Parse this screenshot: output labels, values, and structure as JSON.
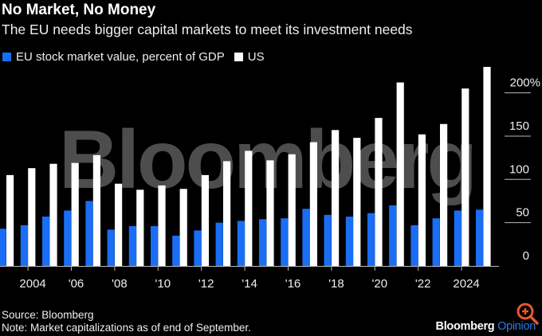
{
  "header": {
    "title": "No Market, No Money",
    "subtitle": "The EU needs bigger capital markets to meet its investment needs"
  },
  "footer": {
    "source": "Source: Bloomberg",
    "note": "Note: Market capitalizations as of end of September.",
    "logo_brand": "Bloomberg",
    "logo_suffix": "Opinion"
  },
  "watermark": "Bloomberg",
  "icons": {
    "overlay": "zoom-in-icon"
  },
  "colors": {
    "eu": "#1a6ef5",
    "us": "#ffffff",
    "background": "#000000",
    "watermark": "#5a5a5a",
    "overlay": "#e8582a"
  },
  "chart_data": {
    "type": "bar",
    "title": "No Market, No Money",
    "xlabel": "",
    "ylabel": "percent of GDP",
    "ylim": [
      0,
      230
    ],
    "yticks": [
      0,
      50,
      100,
      150,
      200
    ],
    "ytick_labels": [
      "0",
      "50",
      "100",
      "150",
      "200%"
    ],
    "xtick_labels": [
      {
        "year": 2004,
        "label": "2004"
      },
      {
        "year": 2006,
        "label": "'06"
      },
      {
        "year": 2008,
        "label": "'08"
      },
      {
        "year": 2010,
        "label": "'10"
      },
      {
        "year": 2012,
        "label": "'12"
      },
      {
        "year": 2014,
        "label": "'14"
      },
      {
        "year": 2016,
        "label": "'16"
      },
      {
        "year": 2018,
        "label": "'18"
      },
      {
        "year": 2020,
        "label": "'20"
      },
      {
        "year": 2022,
        "label": "'22"
      },
      {
        "year": 2024,
        "label": "2024"
      }
    ],
    "legend_position": "top-left",
    "categories": [
      2003,
      2004,
      2005,
      2006,
      2007,
      2008,
      2009,
      2010,
      2011,
      2012,
      2013,
      2014,
      2015,
      2016,
      2017,
      2018,
      2019,
      2020,
      2021,
      2022,
      2023,
      2024,
      2025
    ],
    "series": [
      {
        "name": "EU stock market value, percent of GDP",
        "color": "#1a6ef5",
        "values": [
          43,
          47,
          57,
          64,
          75,
          42,
          46,
          46,
          35,
          41,
          50,
          52,
          54,
          55,
          66,
          59,
          57,
          61,
          70,
          47,
          55,
          64,
          65
        ]
      },
      {
        "name": "US",
        "color": "#ffffff",
        "values": [
          105,
          113,
          118,
          119,
          128,
          95,
          88,
          93,
          89,
          105,
          121,
          133,
          122,
          129,
          143,
          157,
          148,
          171,
          212,
          152,
          164,
          205,
          230
        ]
      }
    ]
  }
}
